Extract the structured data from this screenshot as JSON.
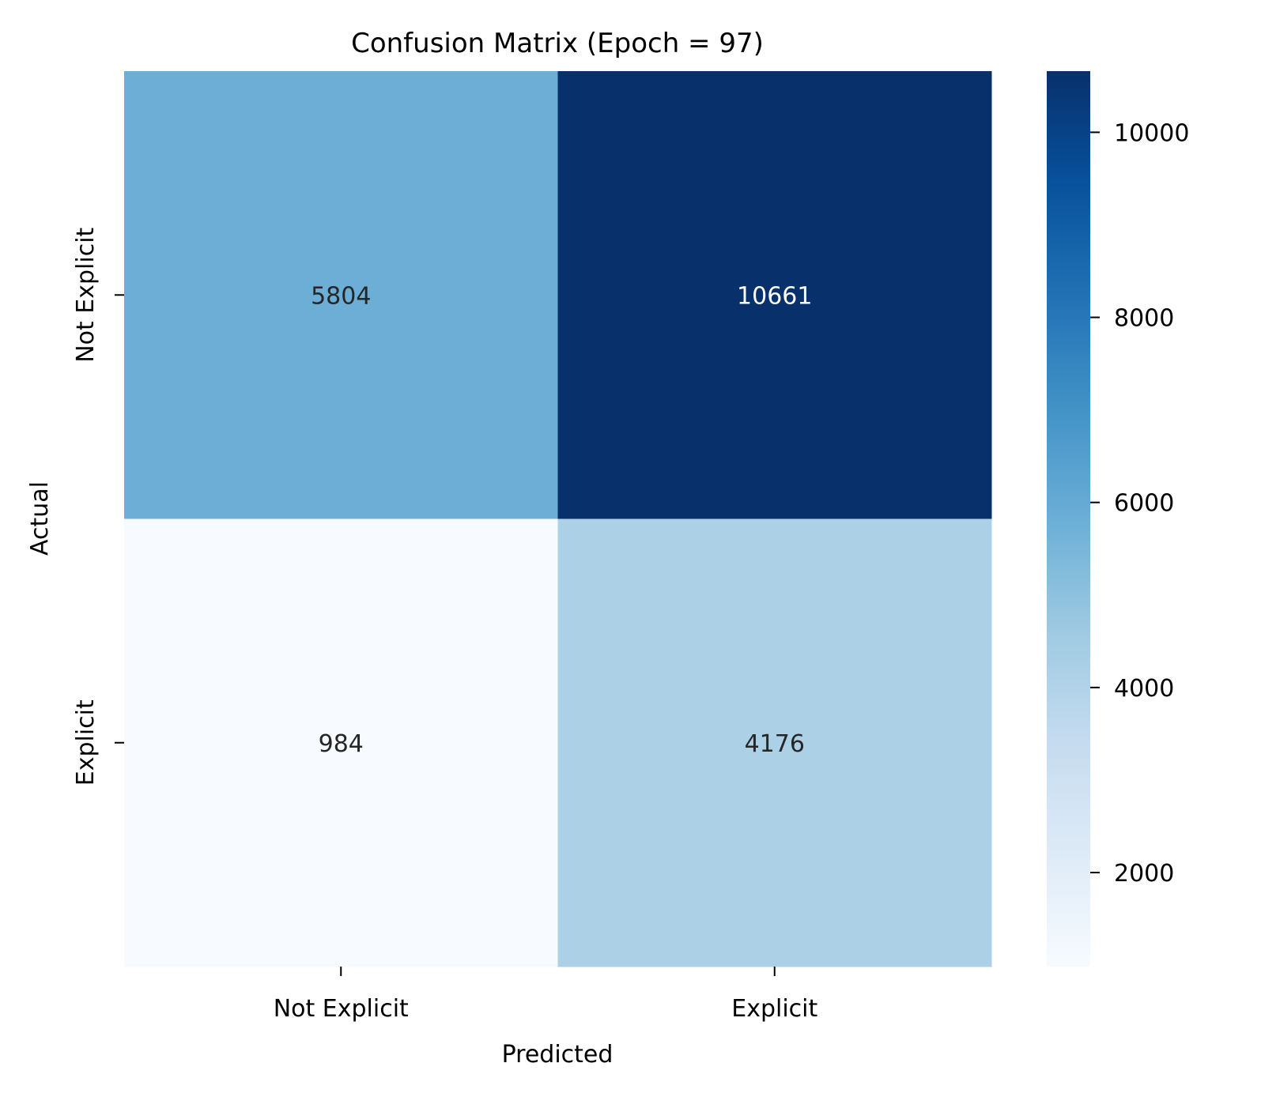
{
  "chart_data": {
    "type": "heatmap",
    "title": "Confusion Matrix (Epoch = 97)",
    "xlabel": "Predicted",
    "ylabel": "Actual",
    "x_categories": [
      "Not Explicit",
      "Explicit"
    ],
    "y_categories": [
      "Not Explicit",
      "Explicit"
    ],
    "values": [
      [
        5804,
        10661
      ],
      [
        984,
        4176
      ]
    ],
    "value_labels": [
      [
        "5804",
        "10661"
      ],
      [
        "984",
        "4176"
      ]
    ],
    "colormap": "Blues",
    "color_range": [
      984,
      10661
    ],
    "colorbar_ticks": [
      {
        "value": 2000,
        "label": "2000"
      },
      {
        "value": 4000,
        "label": "4000"
      },
      {
        "value": 6000,
        "label": "6000"
      },
      {
        "value": 8000,
        "label": "8000"
      },
      {
        "value": 10000,
        "label": "10000"
      }
    ],
    "colors": {
      "cell_5804": "#6daed5",
      "cell_10661": "#08306b",
      "cell_984": "#f7fbff",
      "cell_4176": "#acd0e6",
      "text_on_dark": "#ffffff",
      "text_on_light": "#262626"
    }
  }
}
